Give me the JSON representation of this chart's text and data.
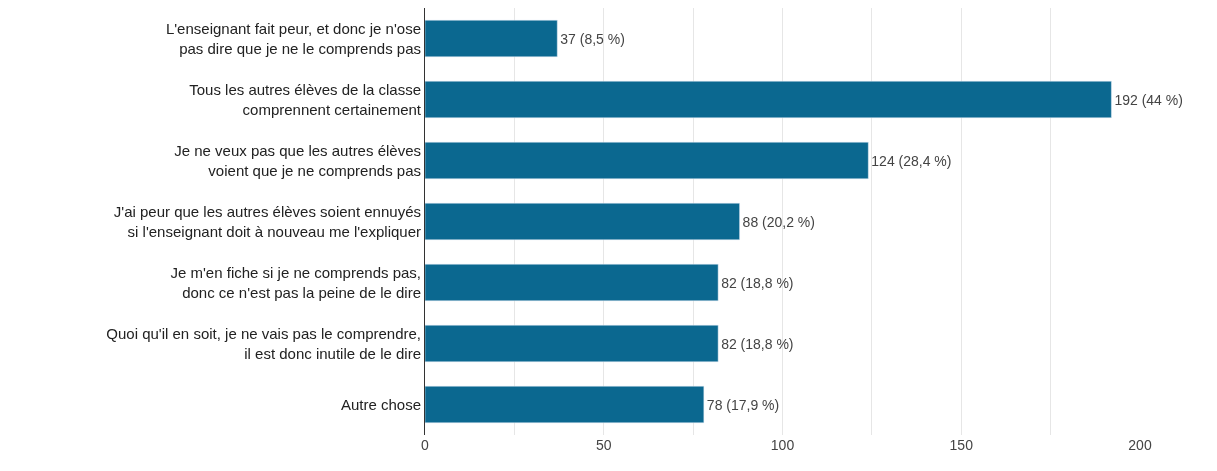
{
  "chart_data": {
    "type": "bar",
    "orientation": "horizontal",
    "categories": [
      "L'enseignant fait peur, et donc je n'ose\npas dire que je ne le comprends pas",
      "Tous les autres élèves de la classe\ncomprennent certainement",
      "Je ne veux pas que les autres élèves\nvoient que je ne comprends pas",
      "J'ai peur que les autres élèves soient ennuyés\nsi l'enseignant doit à nouveau me l'expliquer",
      "Je m'en fiche si je ne comprends pas,\ndonc ce n'est pas la peine de le dire",
      "Quoi qu'il en soit, je ne vais pas le comprendre,\nil est donc inutile de le dire",
      "Autre chose"
    ],
    "values": [
      37,
      192,
      124,
      88,
      82,
      82,
      78
    ],
    "value_labels": [
      "37 (8,5 %)",
      "192 (44 %)",
      "124 (28,4 %)",
      "88 (20,2 %)",
      "82 (18,8 %)",
      "82 (18,8 %)",
      "78 (17,9 %)"
    ],
    "color": "#0b6890",
    "xlim": [
      0,
      200
    ],
    "xticks": [
      0,
      {
        "value": 25,
        "label": null
      },
      50,
      {
        "value": 75,
        "label": null
      },
      100,
      {
        "value": 125,
        "label": null
      },
      150,
      {
        "value": 175,
        "label": null
      },
      200
    ],
    "grid": "x",
    "legend": false
  }
}
